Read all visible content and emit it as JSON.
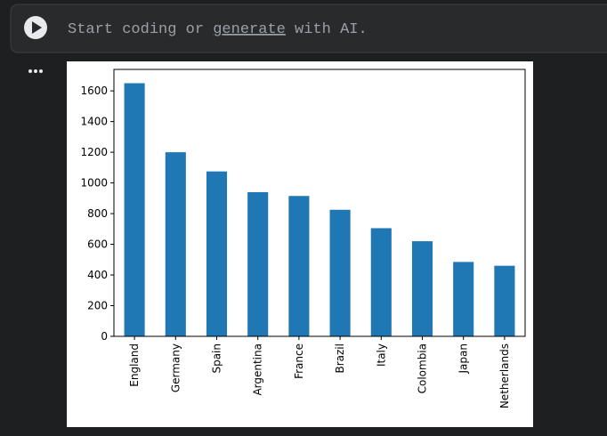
{
  "cell": {
    "placeholder_start": "Start coding or ",
    "placeholder_link": "generate",
    "placeholder_end": " with AI."
  },
  "chart_data": {
    "type": "bar",
    "categories": [
      "England",
      "Germany",
      "Spain",
      "Argentina",
      "France",
      "Brazil",
      "Italy",
      "Colombia",
      "Japan",
      "Netherlands"
    ],
    "values": [
      1650,
      1200,
      1075,
      940,
      915,
      825,
      705,
      620,
      485,
      460
    ],
    "color": "#1f77b4",
    "ylim": [
      0,
      1740
    ],
    "yticks": [
      0,
      200,
      400,
      600,
      800,
      1000,
      1200,
      1400,
      1600
    ],
    "grid": false
  }
}
